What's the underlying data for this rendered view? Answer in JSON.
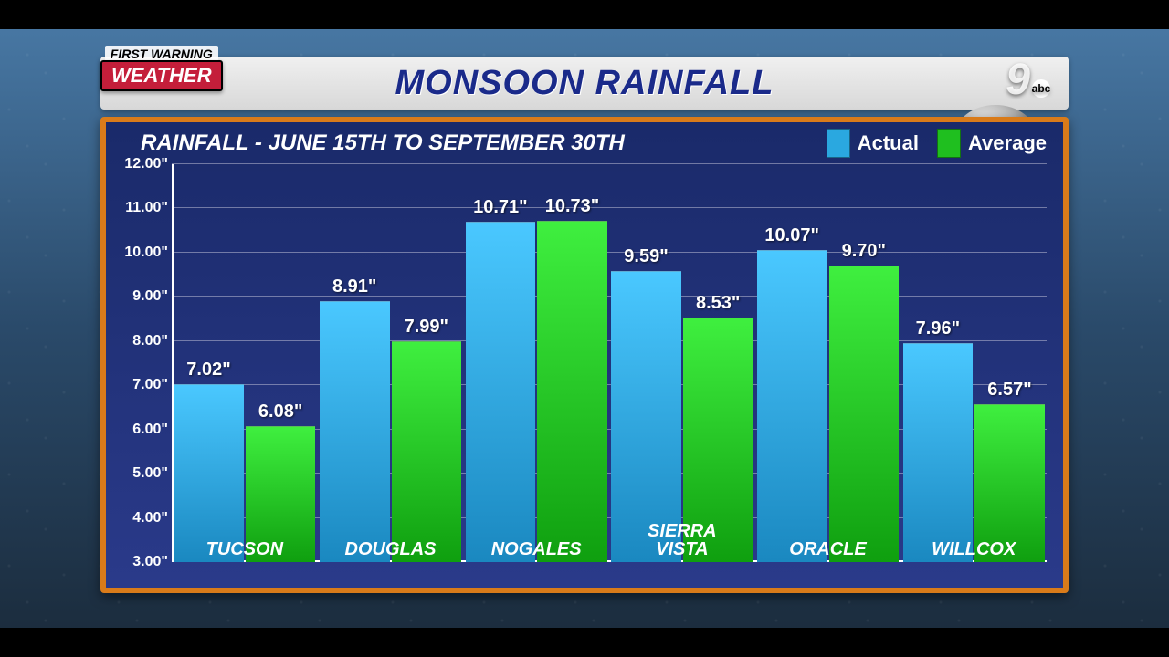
{
  "header": {
    "badge_top": "FIRST WARNING",
    "badge_bottom": "WEATHER",
    "title": "MONSOON RAINFALL",
    "station_number": "9",
    "station_net": "abc"
  },
  "chart": {
    "type": "bar",
    "subtitle": "RAINFALL - JUNE 15TH TO SEPTEMBER 30TH",
    "legend": [
      {
        "label": "Actual",
        "color": "#2aa8e0"
      },
      {
        "label": "Average",
        "color": "#1fbf1f"
      }
    ],
    "ylim": [
      3.0,
      12.0
    ],
    "ytick_step": 1.0,
    "y_suffix": "\"",
    "categories": [
      "TUCSON",
      "DOUGLAS",
      "NOGALES",
      "SIERRA\nVISTA",
      "ORACLE",
      "WILLCOX"
    ],
    "series": {
      "actual": [
        7.02,
        8.91,
        10.71,
        9.59,
        10.07,
        7.96
      ],
      "average": [
        6.08,
        7.99,
        10.73,
        8.53,
        9.7,
        6.57
      ]
    },
    "value_labels": {
      "actual": [
        "7.02\"",
        "8.91\"",
        "10.71\"",
        "9.59\"",
        "10.07\"",
        "7.96\""
      ],
      "average": [
        "6.08\"",
        "7.99\"",
        "10.73\"",
        "8.53\"",
        "9.70\"",
        "6.57\""
      ]
    },
    "colors": {
      "actual_bar": "linear-gradient(180deg,#4ac8ff,#1a88c0)",
      "average_bar": "linear-gradient(180deg,#3fef3f,#0f9f0f)",
      "grid": "rgba(200,200,220,0.5)",
      "frame_border": "#d97b1a",
      "chart_bg_top": "#1a2a6a",
      "chart_bg_bot": "#2a3a8a",
      "title_color": "#1a2a8a",
      "text": "#ffffff"
    },
    "title_fontsize": 38,
    "subtitle_fontsize": 24,
    "label_fontsize": 20,
    "tick_fontsize": 16
  }
}
